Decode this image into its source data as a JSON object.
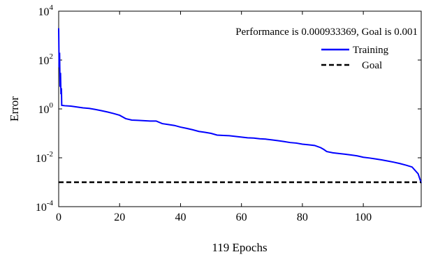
{
  "chart_data": {
    "type": "line",
    "title": "",
    "annotation": "Performance is 0.000933369, Goal is 0.001",
    "xlabel": "119 Epochs",
    "ylabel": "Error",
    "xlim": [
      0,
      119
    ],
    "ylim": [
      0.0001,
      10000
    ],
    "yscale": "log",
    "x_ticks": [
      0,
      20,
      40,
      60,
      80,
      100
    ],
    "x_tick_labels": [
      "0",
      "20",
      "40",
      "60",
      "80",
      "100"
    ],
    "y_ticks": [
      0.0001,
      0.01,
      1,
      100,
      10000
    ],
    "y_tick_labels": [
      {
        "base": "10",
        "exp": "-4"
      },
      {
        "base": "10",
        "exp": "-2"
      },
      {
        "base": "10",
        "exp": "0"
      },
      {
        "base": "10",
        "exp": "2"
      },
      {
        "base": "10",
        "exp": "4"
      }
    ],
    "grid": false,
    "legend_position": "top-right",
    "series": [
      {
        "name": "Training",
        "color": "#0000ff",
        "style": "solid",
        "x": [
          0,
          0.15,
          0.3,
          0.45,
          0.6,
          0.75,
          0.9,
          1,
          2,
          4,
          6,
          8,
          10,
          12,
          14,
          16,
          18,
          20,
          22,
          24,
          26,
          28,
          30,
          32,
          34,
          36,
          38,
          40,
          42,
          44,
          46,
          48,
          50,
          52,
          54,
          56,
          58,
          60,
          62,
          64,
          66,
          68,
          70,
          72,
          74,
          76,
          78,
          80,
          82,
          84,
          86,
          87,
          88,
          90,
          92,
          94,
          96,
          98,
          100,
          102,
          104,
          106,
          108,
          110,
          112,
          114,
          116,
          118,
          119
        ],
        "y": [
          2000,
          50,
          200,
          8,
          30,
          4,
          7,
          1.4,
          1.35,
          1.3,
          1.2,
          1.1,
          1.05,
          0.95,
          0.85,
          0.75,
          0.65,
          0.55,
          0.4,
          0.35,
          0.34,
          0.33,
          0.32,
          0.32,
          0.25,
          0.23,
          0.21,
          0.18,
          0.16,
          0.14,
          0.12,
          0.11,
          0.1,
          0.085,
          0.082,
          0.08,
          0.075,
          0.07,
          0.066,
          0.064,
          0.06,
          0.058,
          0.054,
          0.05,
          0.046,
          0.042,
          0.04,
          0.036,
          0.034,
          0.032,
          0.026,
          0.022,
          0.018,
          0.016,
          0.015,
          0.014,
          0.013,
          0.012,
          0.0105,
          0.0098,
          0.009,
          0.0082,
          0.0074,
          0.0066,
          0.0058,
          0.005,
          0.0042,
          0.0022,
          0.00093
        ]
      },
      {
        "name": "Goal",
        "color": "#000000",
        "style": "dashed",
        "x": [
          0,
          119
        ],
        "y": [
          0.001,
          0.001
        ]
      }
    ]
  }
}
